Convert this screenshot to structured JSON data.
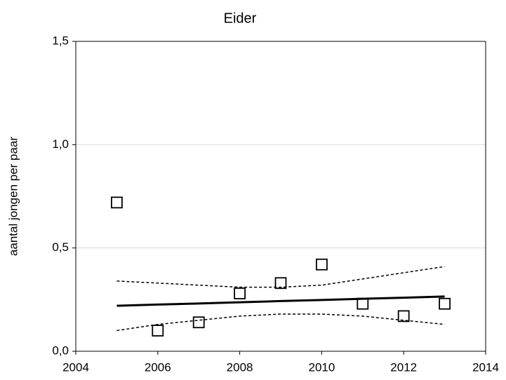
{
  "chart_data": {
    "type": "scatter",
    "title": "Eider",
    "ylabel": "aantal jongen per paar",
    "x": [
      2005,
      2006,
      2007,
      2008,
      2009,
      2010,
      2011,
      2012,
      2013
    ],
    "series": [
      {
        "values": [
          0.72,
          0.1,
          0.14,
          0.28,
          0.33,
          0.42,
          0.23,
          0.17,
          0.23
        ],
        "marker": "square",
        "color": "#000000"
      },
      {
        "values": [
          0.22,
          0.226,
          0.231,
          0.237,
          0.243,
          0.248,
          0.254,
          0.259,
          0.265
        ],
        "line": "solid",
        "color": "#000000"
      },
      {
        "values": [
          0.34,
          0.33,
          0.32,
          0.31,
          0.31,
          0.32,
          0.35,
          0.38,
          0.41
        ],
        "line": "dashed",
        "color": "#000000"
      },
      {
        "values": [
          0.1,
          0.13,
          0.15,
          0.17,
          0.18,
          0.18,
          0.17,
          0.15,
          0.13
        ],
        "line": "dashed",
        "color": "#000000"
      }
    ],
    "xlim": [
      2004,
      2014
    ],
    "xticks": [
      2004,
      2006,
      2008,
      2010,
      2012,
      2014
    ],
    "ylim": [
      0,
      1.5
    ],
    "yticks": [
      {
        "value": 0,
        "label": "0,0"
      },
      {
        "value": 0.5,
        "label": "0,5"
      },
      {
        "value": 1.0,
        "label": "1,0"
      },
      {
        "value": 1.5,
        "label": "1,5"
      }
    ],
    "grid": true
  }
}
